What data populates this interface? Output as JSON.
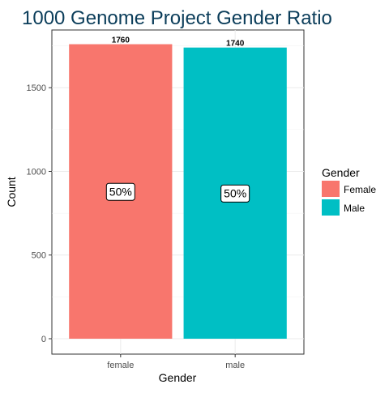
{
  "chart_data": {
    "type": "bar",
    "title": "1000 Genome Project Gender Ratio",
    "xlabel": "Gender",
    "ylabel": "Count",
    "categories": [
      "female",
      "male"
    ],
    "values": [
      1760,
      1740
    ],
    "value_labels": [
      "1760",
      "1740"
    ],
    "percent_labels": [
      "50%",
      "50%"
    ],
    "colors": [
      "#F8766D",
      "#00BFC4"
    ],
    "ylim": [
      0,
      1845
    ],
    "yticks": [
      0,
      500,
      1000,
      1500
    ],
    "ytick_labels": [
      "0",
      "500",
      "1000",
      "1500"
    ],
    "grid": true,
    "legend": {
      "title": "Gender",
      "placement": "right",
      "entries": [
        {
          "label": "Female",
          "color": "#F8766D"
        },
        {
          "label": "Male",
          "color": "#00BFC4"
        }
      ]
    }
  }
}
